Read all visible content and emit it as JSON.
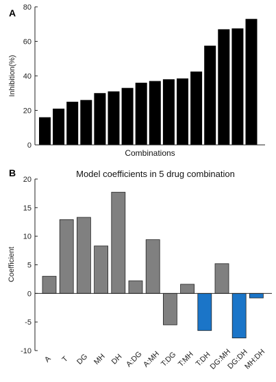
{
  "chart_data": [
    {
      "panel_label": "A",
      "type": "bar",
      "title": "",
      "xlabel": "Combinations",
      "ylabel": "Inhibition(%)",
      "ylim": [
        0,
        80
      ],
      "yticks": [
        0,
        20,
        40,
        60,
        80
      ],
      "grid": false,
      "values": [
        16,
        21,
        25,
        26,
        30,
        31,
        33,
        36,
        37,
        38,
        38.5,
        42.5,
        57.5,
        67,
        67.5,
        73
      ],
      "bar_color": "#000000"
    },
    {
      "panel_label": "B",
      "type": "bar",
      "title": "Model coefficients in 5 drug combination",
      "xlabel": "",
      "ylabel": "Coefficient",
      "ylim": [
        -10,
        20
      ],
      "yticks": [
        -10,
        -5,
        0,
        5,
        10,
        15,
        20
      ],
      "grid": false,
      "categories": [
        "A",
        "T",
        "DG",
        "MH",
        "DH",
        "A:DG",
        "A:MH",
        "T:DG",
        "T:MH",
        "T:DH",
        "DG:MH",
        "DG:DH",
        "MH:DH"
      ],
      "values": [
        3.0,
        12.9,
        13.3,
        8.3,
        17.7,
        2.2,
        9.4,
        -5.5,
        1.6,
        -6.5,
        5.2,
        -7.8,
        -0.8
      ],
      "colors": [
        "#808080",
        "#808080",
        "#808080",
        "#808080",
        "#808080",
        "#808080",
        "#808080",
        "#808080",
        "#808080",
        "#1b75c8",
        "#808080",
        "#1b75c8",
        "#1b75c8"
      ]
    }
  ]
}
